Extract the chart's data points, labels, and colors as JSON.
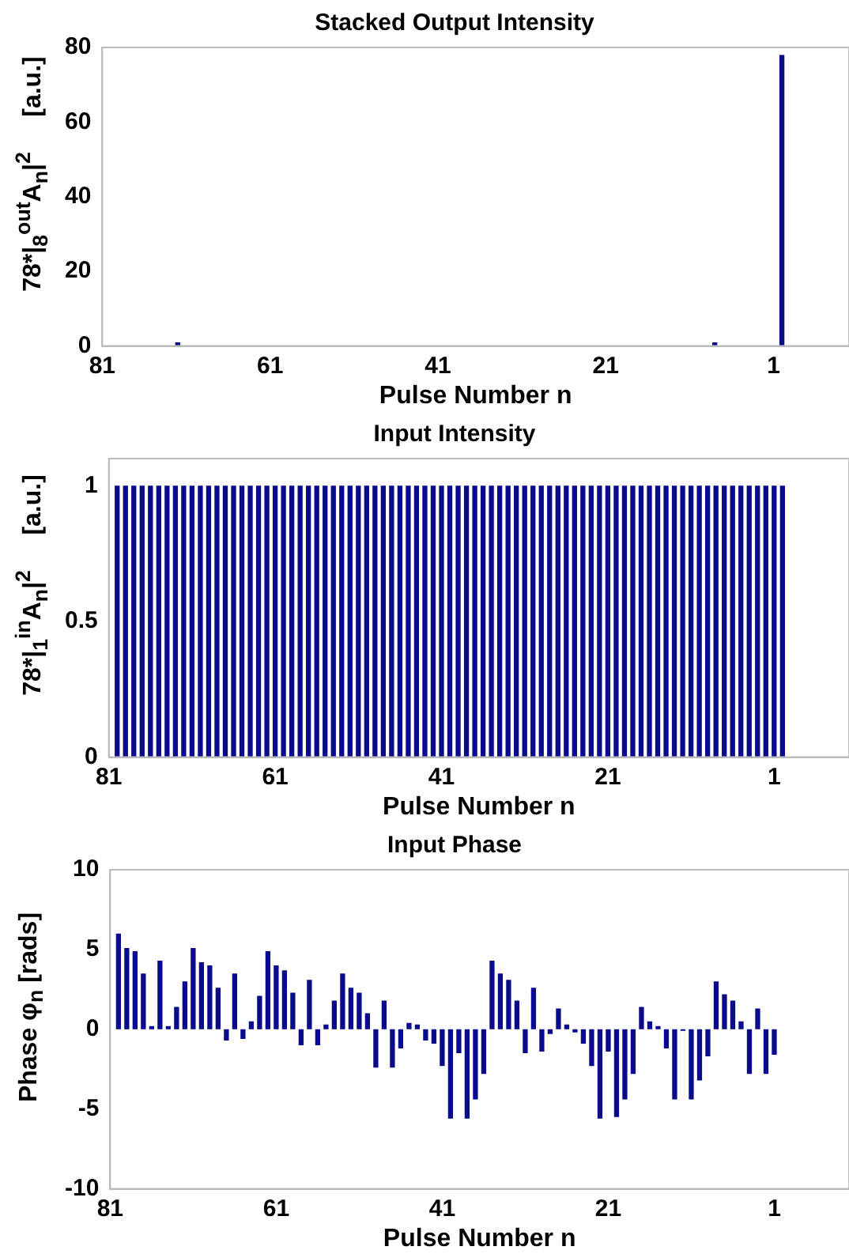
{
  "chart_data": [
    {
      "type": "bar",
      "title": "Stacked Output Intensity",
      "xlabel": "Pulse Number n",
      "ylabel": "78*|$_{8}$$^{out}$A$_{n}$|$^{2}$     [a.u.]",
      "color": "#0a0a8c",
      "x": [
        80,
        79,
        78,
        77,
        76,
        75,
        74,
        73,
        72,
        71,
        70,
        69,
        68,
        67,
        66,
        65,
        64,
        63,
        62,
        61,
        60,
        59,
        58,
        57,
        56,
        55,
        54,
        53,
        52,
        51,
        50,
        49,
        48,
        47,
        46,
        45,
        44,
        43,
        42,
        41,
        40,
        39,
        38,
        37,
        36,
        35,
        34,
        33,
        32,
        31,
        30,
        29,
        28,
        27,
        26,
        25,
        24,
        23,
        22,
        21,
        20,
        19,
        18,
        17,
        16,
        15,
        14,
        13,
        12,
        11,
        10,
        9,
        8,
        7,
        6,
        5,
        4,
        3,
        2,
        1,
        0
      ],
      "values": [
        0,
        0,
        0,
        0,
        0,
        0,
        0,
        0,
        1,
        0,
        0,
        0,
        0,
        0,
        0,
        0,
        0,
        null,
        0,
        0,
        0,
        0,
        0,
        0,
        0,
        0,
        0,
        0,
        0,
        0,
        0,
        0,
        0,
        0,
        0,
        0,
        0,
        0,
        0,
        0,
        0,
        0,
        0,
        0,
        0,
        0,
        0,
        0,
        0,
        0,
        0,
        0,
        0,
        0,
        0,
        0,
        0,
        0,
        0,
        0,
        0,
        0,
        0,
        0,
        0,
        0,
        0,
        0,
        0,
        0,
        0,
        0,
        1,
        null,
        0,
        0,
        0,
        0,
        0,
        0,
        78
      ],
      "xlim": [
        81,
        -8
      ],
      "xticks": [
        81,
        61,
        41,
        21,
        1
      ],
      "ylim": [
        0,
        80
      ],
      "yticks": [
        0,
        20,
        40,
        60,
        80
      ]
    },
    {
      "type": "bar",
      "title": "Input Intensity",
      "xlabel": "Pulse Number n",
      "ylabel": "78*|$_{1}$$^{in}$A$_{n}$|$^{2}$     [a.u.]",
      "color": "#0a0a8c",
      "x": [
        80,
        79,
        78,
        77,
        76,
        75,
        74,
        73,
        72,
        71,
        70,
        69,
        68,
        67,
        66,
        65,
        64,
        63,
        62,
        61,
        60,
        59,
        58,
        57,
        56,
        55,
        54,
        53,
        52,
        51,
        50,
        49,
        48,
        47,
        46,
        45,
        44,
        43,
        42,
        41,
        40,
        39,
        38,
        37,
        36,
        35,
        34,
        33,
        32,
        31,
        30,
        29,
        28,
        27,
        26,
        25,
        24,
        23,
        22,
        21,
        20,
        19,
        18,
        17,
        16,
        15,
        14,
        13,
        12,
        11,
        10,
        9,
        8,
        7,
        6,
        5,
        4,
        3,
        2,
        1,
        0
      ],
      "values": [
        1,
        1,
        1,
        1,
        1,
        1,
        1,
        1,
        1,
        1,
        1,
        1,
        1,
        1,
        1,
        1,
        1,
        1,
        1,
        1,
        1,
        1,
        1,
        1,
        1,
        1,
        1,
        1,
        1,
        1,
        1,
        1,
        1,
        1,
        1,
        1,
        1,
        1,
        1,
        1,
        1,
        1,
        1,
        1,
        1,
        1,
        1,
        1,
        1,
        1,
        1,
        1,
        1,
        1,
        1,
        1,
        1,
        1,
        1,
        1,
        1,
        1,
        1,
        1,
        1,
        1,
        1,
        1,
        1,
        1,
        1,
        1,
        1,
        1,
        1,
        1,
        1,
        1,
        1,
        1,
        1
      ],
      "xlim": [
        81,
        -8
      ],
      "xticks": [
        81,
        61,
        41,
        21,
        1
      ],
      "ylim": [
        0,
        1.1
      ],
      "yticks": [
        0,
        0.5,
        1
      ]
    },
    {
      "type": "bar",
      "title": "Input Phase",
      "xlabel": "Pulse Number n",
      "ylabel": "Phase φ$_{n}$ [rads]",
      "color": "#0a0a8c",
      "x": [
        80,
        79,
        78,
        77,
        76,
        75,
        74,
        73,
        72,
        71,
        70,
        69,
        68,
        67,
        66,
        65,
        64,
        63,
        62,
        61,
        60,
        59,
        58,
        57,
        56,
        55,
        54,
        53,
        52,
        51,
        50,
        49,
        48,
        47,
        46,
        45,
        44,
        43,
        42,
        41,
        40,
        39,
        38,
        37,
        36,
        35,
        34,
        33,
        32,
        31,
        30,
        29,
        28,
        27,
        26,
        25,
        24,
        23,
        22,
        21,
        20,
        19,
        18,
        17,
        16,
        15,
        14,
        13,
        12,
        11,
        10,
        9,
        8,
        7,
        6,
        5,
        4,
        3,
        2,
        1
      ],
      "values": [
        6.0,
        5.1,
        4.9,
        3.5,
        0.2,
        4.3,
        0.2,
        1.4,
        3.0,
        5.1,
        4.2,
        4.0,
        2.6,
        -0.7,
        3.5,
        -0.6,
        0.5,
        2.1,
        4.9,
        4.0,
        3.7,
        2.3,
        -1.0,
        3.1,
        -1.0,
        0.3,
        1.8,
        3.5,
        2.6,
        2.3,
        1.0,
        -2.4,
        1.8,
        -2.4,
        -1.2,
        0.4,
        0.3,
        -0.7,
        -0.9,
        -2.3,
        -5.6,
        -1.5,
        -5.6,
        -4.4,
        -2.8,
        4.3,
        3.5,
        3.1,
        1.8,
        -1.5,
        2.6,
        -1.4,
        -0.3,
        1.3,
        0.3,
        -0.2,
        -0.9,
        -2.3,
        -5.6,
        -1.4,
        -5.5,
        -4.4,
        -2.8,
        1.4,
        0.5,
        0.2,
        -1.2,
        -4.4,
        -0.1,
        -4.4,
        -3.2,
        -1.7,
        3.0,
        2.2,
        1.8,
        0.5,
        -2.8,
        1.3,
        -2.8,
        -1.6
      ],
      "xlim": [
        81,
        -8
      ],
      "xticks": [
        81,
        61,
        41,
        21,
        1
      ],
      "ylim": [
        -10,
        10
      ],
      "yticks": [
        -10,
        -5,
        0,
        5,
        10
      ]
    }
  ]
}
